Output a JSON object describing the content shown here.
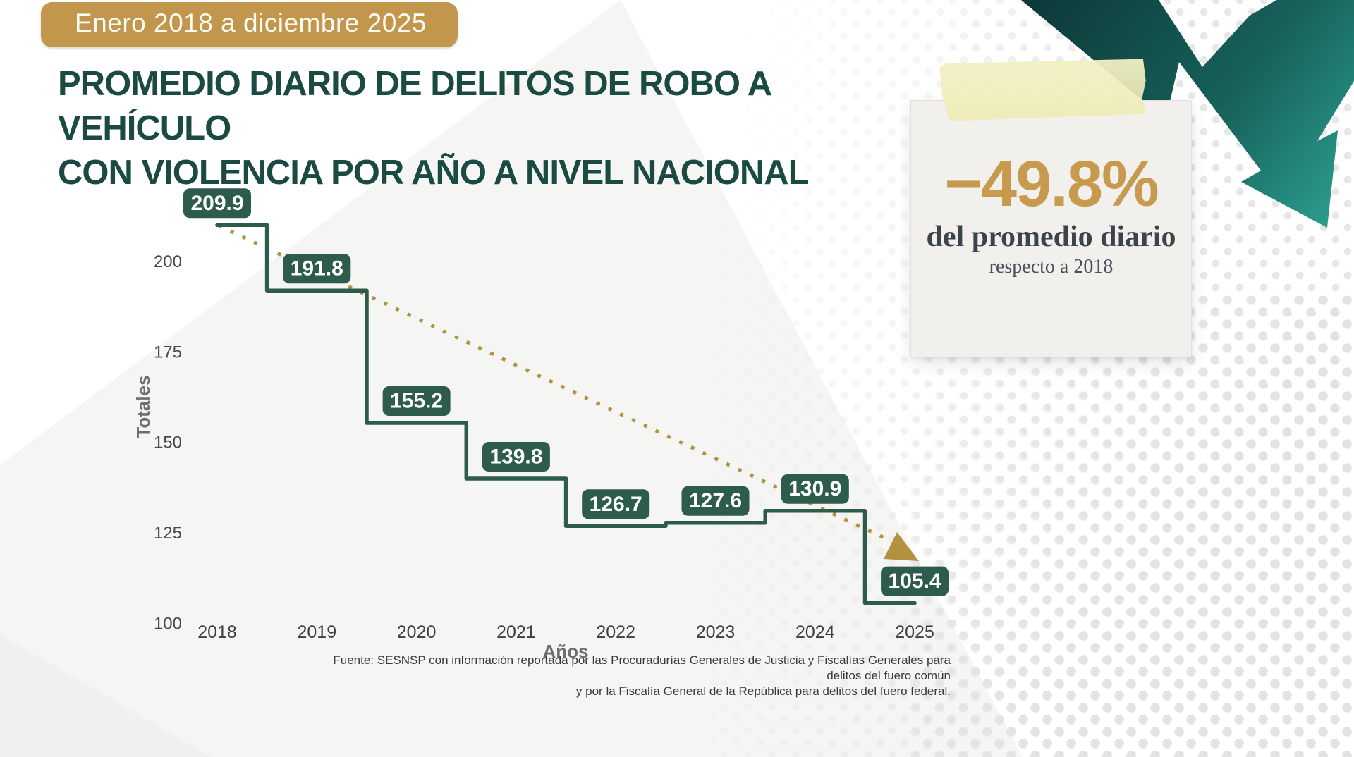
{
  "badge": {
    "label": "Enero 2018 a diciembre 2025"
  },
  "title": {
    "line1": "PROMEDIO DIARIO DE DELITOS DE ROBO A VEHÍCULO",
    "line2": "CON VIOLENCIA POR AÑO A NIVEL NACIONAL"
  },
  "note": {
    "percent": "−49.8%",
    "caption": "del promedio diario",
    "subcaption": "respecto a 2018"
  },
  "chart_data": {
    "type": "step-line",
    "title": "Promedio diario de delitos de robo a vehículo con violencia por año a nivel nacional",
    "categories": [
      "2018",
      "2019",
      "2020",
      "2021",
      "2022",
      "2023",
      "2024",
      "2025"
    ],
    "values": [
      209.9,
      191.8,
      155.2,
      139.8,
      126.7,
      127.6,
      130.9,
      105.4
    ],
    "xlabel": "Años",
    "ylabel": "Totales",
    "yticks": [
      100,
      125,
      150,
      175,
      200
    ],
    "ylim": [
      100,
      215
    ],
    "grid": false,
    "line_color": "#2d5c4c",
    "label_text_color": "#ffffff",
    "trend": {
      "style": "dotted",
      "color": "#b2913f",
      "direction": "down",
      "arrowhead": true
    }
  },
  "source": {
    "line1": "Fuente: SESNSP con información reportada por las Procuradurías Generales de Justicia y Fiscalías Generales para delitos del fuero común",
    "line2": "y por la Fiscalía General de la República para delitos del fuero federal."
  },
  "colors": {
    "badge_gold": "#c2974d",
    "title_teal": "#1b4a42",
    "step_green": "#2d5c4c",
    "trend_gold": "#b2913f",
    "percent_gold": "#c79a4e",
    "arrow_teal_dark": "#0d3b3b",
    "arrow_teal_light": "#2da190",
    "note_paper": "#f1f0ec",
    "tape_yellow": "#f2efbe"
  }
}
